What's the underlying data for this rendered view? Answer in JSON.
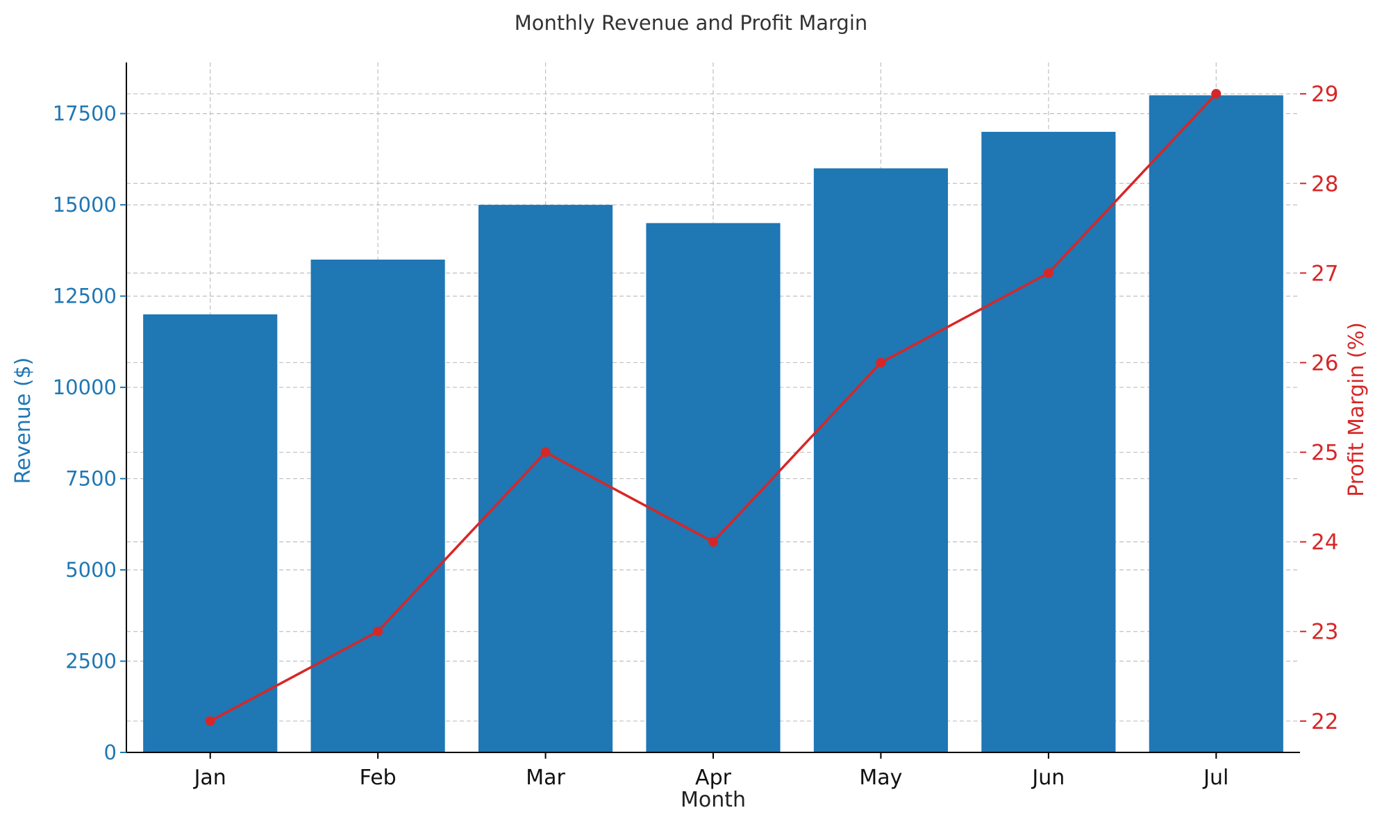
{
  "chart_data": {
    "type": "bar",
    "title": "Monthly Revenue and Profit Margin",
    "xlabel": "Month",
    "categories": [
      "Jan",
      "Feb",
      "Mar",
      "Apr",
      "May",
      "Jun",
      "Jul"
    ],
    "series": [
      {
        "name": "Revenue",
        "type": "bar",
        "axis": "left",
        "values": [
          12000,
          13500,
          15000,
          14500,
          16000,
          17000,
          18000
        ],
        "color": "#1f77b4"
      },
      {
        "name": "Profit Margin",
        "type": "line",
        "axis": "right",
        "values": [
          22,
          23,
          25,
          24,
          26,
          27,
          29
        ],
        "color": "#d62728",
        "marker": "circle"
      }
    ],
    "y_left": {
      "label": "Revenue ($)",
      "ylim": [
        0,
        18900
      ],
      "ticks": [
        0,
        2500,
        5000,
        7500,
        10000,
        12500,
        15000,
        17500
      ],
      "color": "#1f77b4"
    },
    "y_right": {
      "label": "Profit Margin (%)",
      "ylim": [
        21.65,
        29.35
      ],
      "ticks": [
        22,
        23,
        24,
        25,
        26,
        27,
        28,
        29
      ],
      "color": "#d62728"
    },
    "grid": true,
    "grid_style": "dashed"
  }
}
